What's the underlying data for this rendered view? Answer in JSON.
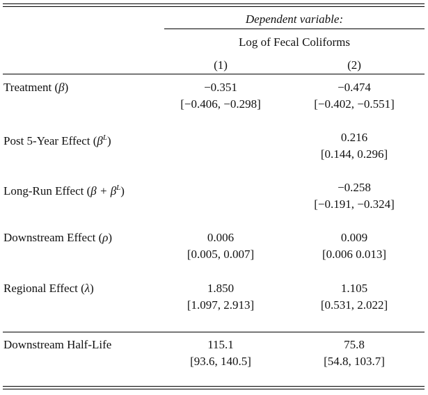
{
  "header": {
    "dependent_variable": "Dependent variable:",
    "variable_name": "Log of Fecal Coliforms",
    "columns": [
      "(1)",
      "(2)"
    ]
  },
  "rows": [
    {
      "label_text": "Treatment (",
      "label_math": "β",
      "label_tail": ")",
      "col1": {
        "estimate": "−0.351",
        "ci": "[−0.406, −0.298]"
      },
      "col2": {
        "estimate": "−0.474",
        "ci": "[−0.402, −0.551]"
      }
    },
    {
      "label_text": "Post 5-Year Effect (",
      "label_math": "β",
      "label_sup": "L",
      "label_tail": ")",
      "col1": {
        "estimate": "",
        "ci": ""
      },
      "col2": {
        "estimate": "0.216",
        "ci": "[0.144, 0.296]"
      }
    },
    {
      "label_text": "Long-Run Effect (",
      "label_math": "β + β",
      "label_sup": "L",
      "label_tail": ")",
      "col1": {
        "estimate": "",
        "ci": ""
      },
      "col2": {
        "estimate": "−0.258",
        "ci": "[−0.191, −0.324]"
      }
    },
    {
      "label_text": "Downstream Effect (",
      "label_math": "ρ",
      "label_tail": ")",
      "col1": {
        "estimate": "0.006",
        "ci": "[0.005, 0.007]"
      },
      "col2": {
        "estimate": "0.009",
        "ci": "[0.006 0.013]"
      }
    },
    {
      "label_text": "Regional Effect (",
      "label_math": "λ",
      "label_tail": ")",
      "col1": {
        "estimate": "1.850",
        "ci": "[1.097, 2.913]"
      },
      "col2": {
        "estimate": "1.105",
        "ci": "[0.531, 2.022]"
      }
    },
    {
      "label_text": "Downstream Half-Life",
      "col1": {
        "estimate": "115.1",
        "ci": "[93.6, 140.5]"
      },
      "col2": {
        "estimate": "75.8",
        "ci": "[54.8, 103.7]"
      }
    }
  ]
}
